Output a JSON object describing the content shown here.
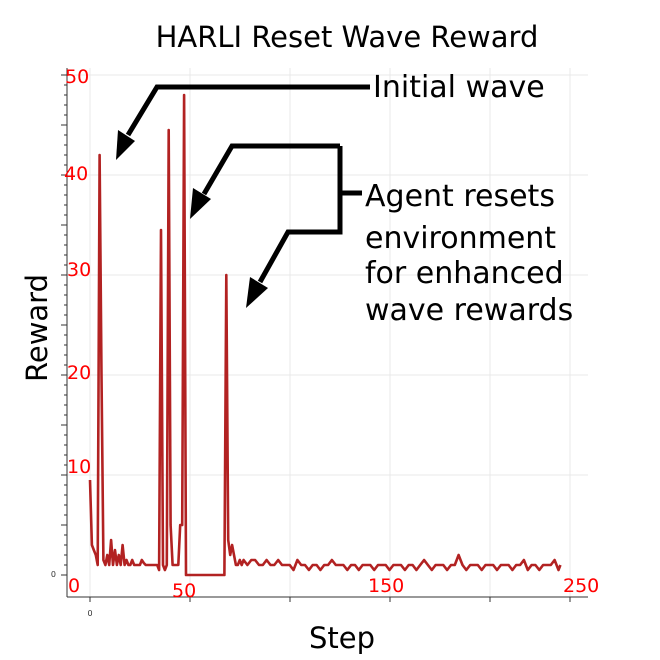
{
  "chart_data": {
    "type": "line",
    "title": "HARLI Reset Wave Reward",
    "xlabel": "Step",
    "ylabel": "Reward",
    "xlim": [
      0,
      250
    ],
    "ylim": [
      0,
      50
    ],
    "grid": true,
    "legend": "none",
    "x_ticks": [
      {
        "value": 0,
        "label": "0"
      },
      {
        "value": 50,
        "label": "50"
      },
      {
        "value": 150,
        "label": "150"
      },
      {
        "value": 250,
        "label": "250"
      }
    ],
    "y_ticks": [
      {
        "value": 0,
        "label": "0"
      },
      {
        "value": 10,
        "label": "10"
      },
      {
        "value": 20,
        "label": "20"
      },
      {
        "value": 30,
        "label": "30"
      },
      {
        "value": 40,
        "label": "40"
      },
      {
        "value": 50,
        "label": "50"
      }
    ],
    "small_x_tick_label": "0",
    "small_y_tick_label": "0",
    "series": [
      {
        "color": "#b22222",
        "x": [
          0,
          1,
          2,
          3,
          4,
          5,
          6,
          7,
          8,
          9,
          10,
          11,
          12,
          13,
          14,
          15,
          16,
          17,
          18,
          19,
          20,
          21,
          22,
          23,
          24,
          25,
          26,
          27,
          28,
          29,
          30,
          31,
          32,
          33,
          34,
          35,
          36,
          37,
          38,
          39,
          40,
          41,
          42,
          43,
          44,
          45,
          46,
          47,
          48,
          49,
          50,
          55,
          60,
          65,
          70,
          71,
          72,
          73,
          74,
          75,
          76,
          77,
          78,
          79,
          80,
          82,
          84,
          86,
          88,
          90,
          92,
          94,
          96,
          98,
          100,
          102,
          104,
          106,
          108,
          110,
          112,
          114,
          116,
          118,
          120,
          122,
          124,
          126,
          128,
          130,
          132,
          134,
          136,
          138,
          140,
          142,
          144,
          146,
          148,
          150,
          152,
          154,
          156,
          158,
          160,
          162,
          164,
          166,
          168,
          170,
          172,
          174,
          176,
          178,
          180,
          182,
          184,
          186,
          188,
          190,
          192,
          194,
          196,
          198,
          200,
          202,
          204,
          206,
          208,
          210,
          212,
          214,
          216,
          218,
          220,
          222,
          224,
          226,
          228,
          230,
          232,
          234,
          236,
          238,
          240,
          242,
          244,
          245
        ],
        "y": [
          9.5,
          3,
          2.5,
          2,
          1,
          42,
          20,
          1.5,
          1,
          2,
          1,
          3.5,
          1,
          2.5,
          1,
          2,
          1,
          3,
          1,
          1.5,
          1,
          1,
          1.5,
          1,
          1,
          1,
          1,
          1.5,
          1.2,
          1,
          1,
          1,
          1,
          1,
          1,
          1,
          0.5,
          34.5,
          1,
          0.5,
          1,
          44.5,
          5,
          1,
          1,
          1,
          1,
          5,
          5,
          48,
          0,
          0,
          0,
          0,
          0,
          30,
          3.5,
          2,
          3,
          2,
          1,
          1,
          1.5,
          1,
          1.5,
          1,
          1.5,
          1.5,
          1,
          1,
          1.5,
          1,
          1,
          1.5,
          1,
          1,
          1,
          0.5,
          1.5,
          1,
          1,
          0.5,
          1,
          1,
          0.5,
          1,
          1,
          1.5,
          1,
          1,
          1,
          0.5,
          1,
          1,
          0.5,
          1,
          1,
          1,
          0.5,
          1,
          1,
          1,
          0.5,
          1,
          1,
          1,
          0.5,
          1,
          1,
          0.5,
          1,
          1.5,
          1,
          0.5,
          1,
          1,
          1,
          0.5,
          1,
          1,
          2,
          1,
          0.5,
          1,
          1,
          1,
          0.5,
          1,
          1,
          1,
          0.5,
          1,
          1,
          1,
          0.5,
          1,
          1,
          1.5,
          0.5,
          1,
          1,
          0.5,
          1,
          1,
          1,
          1.5,
          0.5,
          1
        ]
      }
    ],
    "annotations": [
      {
        "text": "Initial wave"
      },
      {
        "text_lines": [
          "Agent resets",
          "environment",
          "for enhanced",
          "wave rewards"
        ]
      }
    ],
    "colors": {
      "tick_labels": "#ff0000",
      "line": "#b22222",
      "annotation": "#000000"
    }
  }
}
